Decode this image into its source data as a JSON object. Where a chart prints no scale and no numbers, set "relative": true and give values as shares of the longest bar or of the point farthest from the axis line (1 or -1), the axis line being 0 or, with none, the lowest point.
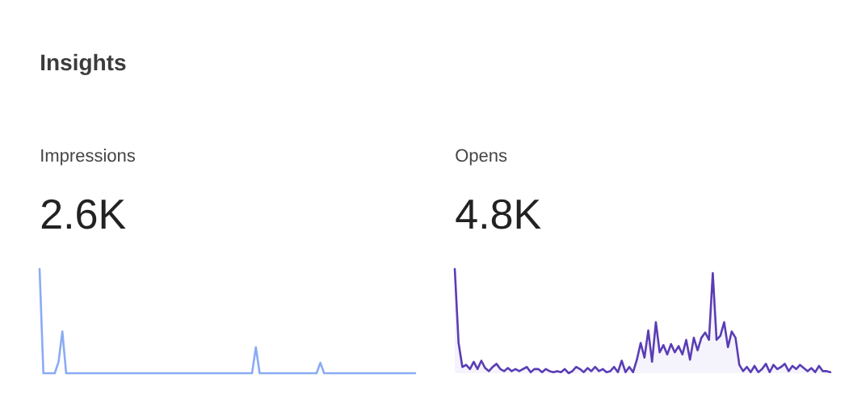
{
  "chart_data": [
    {
      "type": "line",
      "title": "Impressions",
      "subtitle": "2.6K",
      "annotations": [
        "Insights"
      ],
      "relative": true,
      "color": "#8aabf5",
      "categories": [
        null,
        null,
        null,
        null,
        null,
        null,
        null,
        null,
        null,
        null,
        null,
        null,
        null,
        null,
        null,
        null,
        null,
        null,
        null,
        null,
        null,
        null,
        null,
        null,
        null,
        null,
        null,
        null,
        null,
        null,
        null,
        null,
        null,
        null,
        null,
        null,
        null,
        null,
        null,
        null,
        null,
        null,
        null,
        null,
        null,
        null,
        null,
        null,
        null,
        null,
        null,
        null,
        null,
        null,
        null,
        null,
        null,
        null,
        null,
        null,
        null,
        null,
        null,
        null,
        null,
        null,
        null,
        null,
        null,
        null,
        null,
        null,
        null,
        null,
        null,
        null,
        null,
        null,
        null,
        null,
        null,
        null,
        null,
        null,
        null,
        null,
        null,
        null,
        null,
        null,
        null,
        null,
        null,
        null,
        null,
        null,
        null,
        null,
        null,
        null
      ],
      "values": [
        1.0,
        0,
        0,
        0,
        0,
        0.11,
        0.4,
        0,
        0,
        0,
        0,
        0,
        0,
        0,
        0,
        0,
        0,
        0,
        0,
        0,
        0,
        0,
        0,
        0,
        0,
        0,
        0,
        0,
        0,
        0,
        0,
        0,
        0,
        0,
        0,
        0,
        0,
        0,
        0,
        0,
        0,
        0,
        0,
        0,
        0,
        0,
        0,
        0,
        0,
        0,
        0,
        0,
        0,
        0,
        0,
        0,
        0,
        0.25,
        0,
        0,
        0,
        0,
        0,
        0,
        0,
        0,
        0,
        0,
        0,
        0,
        0,
        0,
        0,
        0,
        0.1,
        0,
        0,
        0,
        0,
        0,
        0,
        0,
        0,
        0,
        0,
        0,
        0,
        0,
        0,
        0,
        0,
        0,
        0,
        0,
        0,
        0,
        0,
        0,
        0,
        0
      ]
    },
    {
      "type": "area",
      "title": "Opens",
      "subtitle": "4.8K",
      "relative": true,
      "color": "#5a3db5",
      "categories": [
        null,
        null,
        null,
        null,
        null,
        null,
        null,
        null,
        null,
        null,
        null,
        null,
        null,
        null,
        null,
        null,
        null,
        null,
        null,
        null,
        null,
        null,
        null,
        null,
        null,
        null,
        null,
        null,
        null,
        null,
        null,
        null,
        null,
        null,
        null,
        null,
        null,
        null,
        null,
        null,
        null,
        null,
        null,
        null,
        null,
        null,
        null,
        null,
        null,
        null,
        null,
        null,
        null,
        null,
        null,
        null,
        null,
        null,
        null,
        null,
        null,
        null,
        null,
        null,
        null,
        null,
        null,
        null,
        null,
        null,
        null,
        null,
        null,
        null,
        null,
        null,
        null,
        null,
        null,
        null,
        null,
        null,
        null,
        null,
        null,
        null,
        null,
        null,
        null,
        null,
        null,
        null,
        null,
        null,
        null,
        null,
        null,
        null,
        null,
        null
      ],
      "values": [
        1.0,
        0.29,
        0.06,
        0.08,
        0.04,
        0.11,
        0.04,
        0.12,
        0.05,
        0.02,
        0.06,
        0.09,
        0.04,
        0.02,
        0.05,
        0.02,
        0.04,
        0.02,
        0.04,
        0.06,
        0.01,
        0.04,
        0.04,
        0.01,
        0.04,
        0.02,
        0.01,
        0.02,
        0.01,
        0.04,
        0,
        0.02,
        0.06,
        0.04,
        0.01,
        0.05,
        0.02,
        0.06,
        0.02,
        0.04,
        0.01,
        0.02,
        0.06,
        0.01,
        0.12,
        0.01,
        0.06,
        0.01,
        0.13,
        0.29,
        0.15,
        0.41,
        0.11,
        0.49,
        0.2,
        0.27,
        0.18,
        0.28,
        0.2,
        0.26,
        0.18,
        0.32,
        0.13,
        0.34,
        0.22,
        0.34,
        0.39,
        0.32,
        0.96,
        0.32,
        0.36,
        0.49,
        0.25,
        0.4,
        0.34,
        0.08,
        0.02,
        0.06,
        0.01,
        0.07,
        0.01,
        0.04,
        0.09,
        0.01,
        0.08,
        0.04,
        0.06,
        0.09,
        0.02,
        0.07,
        0.04,
        0.08,
        0.05,
        0.02,
        0.05,
        0.01,
        0.07,
        0.02,
        0.02,
        0.01
      ]
    }
  ]
}
